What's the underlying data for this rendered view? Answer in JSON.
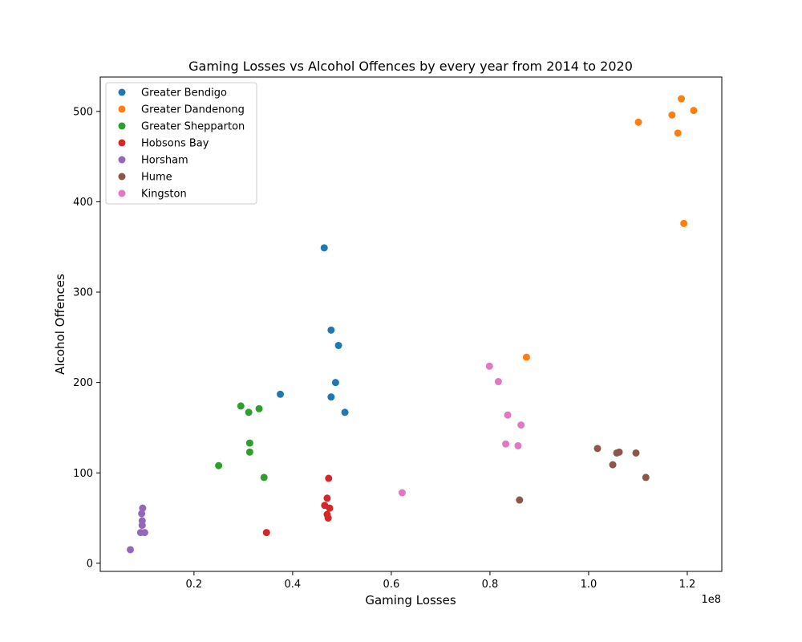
{
  "chart_data": {
    "type": "scatter",
    "title": "Gaming Losses vs Alcohol Offences by every year from 2014 to 2020",
    "xlabel": "Gaming Losses",
    "ylabel": "Alcohol Offences",
    "x_offset_text": "1e8",
    "x_scale": 100000000,
    "xlim": [
      1000000,
      127000000
    ],
    "ylim": [
      -9,
      538
    ],
    "xticks": [
      20000000,
      40000000,
      60000000,
      80000000,
      100000000,
      120000000
    ],
    "xtick_labels": [
      "0.2",
      "0.4",
      "0.6",
      "0.8",
      "1.0",
      "1.2"
    ],
    "yticks": [
      0,
      100,
      200,
      300,
      400,
      500
    ],
    "ytick_labels": [
      "0",
      "100",
      "200",
      "300",
      "400",
      "500"
    ],
    "legend_position": "upper-left",
    "grid": false,
    "series": [
      {
        "name": "Greater Bendigo",
        "color": "#1f77b4",
        "points": [
          [
            46400000,
            349
          ],
          [
            47800000,
            258
          ],
          [
            49300000,
            241
          ],
          [
            48700000,
            200
          ],
          [
            37500000,
            187
          ],
          [
            47800000,
            184
          ],
          [
            50600000,
            167
          ]
        ]
      },
      {
        "name": "Greater Dandenong",
        "color": "#ff7f0e",
        "points": [
          [
            118800000,
            514
          ],
          [
            121300000,
            501
          ],
          [
            116900000,
            496
          ],
          [
            110100000,
            488
          ],
          [
            118100000,
            476
          ],
          [
            119300000,
            376
          ],
          [
            87400000,
            228
          ]
        ]
      },
      {
        "name": "Greater Shepparton",
        "color": "#2ca02c",
        "points": [
          [
            29500000,
            174
          ],
          [
            33200000,
            171
          ],
          [
            31100000,
            167
          ],
          [
            31300000,
            133
          ],
          [
            31300000,
            123
          ],
          [
            25000000,
            108
          ],
          [
            34200000,
            95
          ]
        ]
      },
      {
        "name": "Hobsons Bay",
        "color": "#d62728",
        "points": [
          [
            47300000,
            94
          ],
          [
            47000000,
            72
          ],
          [
            46500000,
            64
          ],
          [
            47500000,
            61
          ],
          [
            47000000,
            54
          ],
          [
            47200000,
            50
          ],
          [
            34700000,
            34
          ]
        ]
      },
      {
        "name": "Horsham",
        "color": "#9467bd",
        "points": [
          [
            9600000,
            61
          ],
          [
            9400000,
            55
          ],
          [
            9500000,
            47
          ],
          [
            9500000,
            42
          ],
          [
            9200000,
            34
          ],
          [
            10000000,
            34
          ],
          [
            7100000,
            15
          ]
        ]
      },
      {
        "name": "Hume",
        "color": "#8c564b",
        "points": [
          [
            101800000,
            127
          ],
          [
            105700000,
            122
          ],
          [
            106200000,
            123
          ],
          [
            109600000,
            122
          ],
          [
            104900000,
            109
          ],
          [
            111600000,
            95
          ],
          [
            86000000,
            70
          ]
        ]
      },
      {
        "name": "Kingston",
        "color": "#e377c2",
        "points": [
          [
            79900000,
            218
          ],
          [
            81700000,
            201
          ],
          [
            83600000,
            164
          ],
          [
            86300000,
            153
          ],
          [
            83200000,
            132
          ],
          [
            85700000,
            130
          ],
          [
            62200000,
            78
          ]
        ]
      }
    ]
  }
}
